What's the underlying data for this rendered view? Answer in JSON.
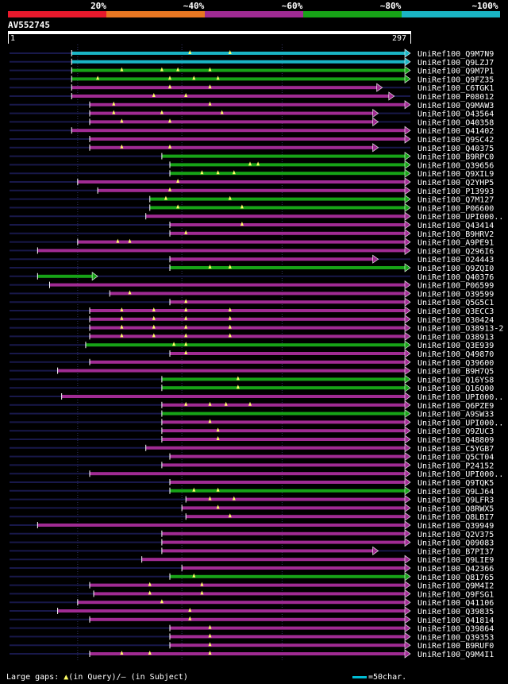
{
  "legend": {
    "segments": [
      {
        "label": "20%",
        "color": "#e8192c"
      },
      {
        "label": "~40%",
        "color": "#e87722"
      },
      {
        "label": "~60%",
        "color": "#a02b93"
      },
      {
        "label": "~80%",
        "color": "#17a317"
      },
      {
        "label": "~100%",
        "color": "#1ab5c5"
      }
    ]
  },
  "query": {
    "name": "AV552745",
    "start": "1",
    "end": "297"
  },
  "hits": [
    {
      "name": "UniRef100_Q9M7N9",
      "color": "cyan",
      "start": 0.155,
      "end": 1.0,
      "gaps": [
        0.45,
        0.55
      ]
    },
    {
      "name": "UniRef100_Q9LZJ7",
      "color": "cyan",
      "start": 0.155,
      "end": 1.0,
      "gaps": []
    },
    {
      "name": "UniRef100_Q9M7P1",
      "color": "green",
      "start": 0.155,
      "end": 1.0,
      "gaps": [
        0.28,
        0.38,
        0.42,
        0.5
      ]
    },
    {
      "name": "UniRef100_Q9FZ35",
      "color": "green",
      "start": 0.155,
      "end": 1.0,
      "gaps": [
        0.22,
        0.4,
        0.46,
        0.52
      ]
    },
    {
      "name": "UniRef100_C6TGK1",
      "color": "magenta",
      "start": 0.155,
      "end": 0.93,
      "gaps": [
        0.4,
        0.5
      ]
    },
    {
      "name": "UniRef100_P08012",
      "color": "magenta",
      "start": 0.155,
      "end": 0.96,
      "gaps": [
        0.36,
        0.44
      ]
    },
    {
      "name": "UniRef100_Q9MAW3",
      "color": "magenta",
      "start": 0.2,
      "end": 1.0,
      "gaps": [
        0.26,
        0.5
      ]
    },
    {
      "name": "UniRef100_O43564",
      "color": "magenta",
      "start": 0.2,
      "end": 0.92,
      "gaps": [
        0.26,
        0.38,
        0.53
      ]
    },
    {
      "name": "UniRef100_O40358",
      "color": "magenta",
      "start": 0.2,
      "end": 0.92,
      "gaps": [
        0.28,
        0.4
      ]
    },
    {
      "name": "UniRef100_Q41402",
      "color": "magenta",
      "start": 0.155,
      "end": 1.0,
      "gaps": []
    },
    {
      "name": "UniRef100_Q9SC42",
      "color": "magenta",
      "start": 0.2,
      "end": 1.0,
      "gaps": []
    },
    {
      "name": "UniRef100_Q40375",
      "color": "magenta",
      "start": 0.2,
      "end": 0.92,
      "gaps": [
        0.28,
        0.4
      ]
    },
    {
      "name": "UniRef100_B9RPC0",
      "color": "green",
      "start": 0.38,
      "end": 1.0,
      "gaps": []
    },
    {
      "name": "UniRef100_Q39656",
      "color": "green",
      "start": 0.4,
      "end": 1.0,
      "gaps": [
        0.6,
        0.62
      ]
    },
    {
      "name": "UniRef100_Q9XIL9",
      "color": "green",
      "start": 0.4,
      "end": 1.0,
      "gaps": [
        0.48,
        0.52,
        0.56
      ]
    },
    {
      "name": "UniRef100_Q2YHP5",
      "color": "magenta",
      "start": 0.17,
      "end": 1.0,
      "gaps": [
        0.42
      ]
    },
    {
      "name": "UniRef100_P13993",
      "color": "magenta",
      "start": 0.22,
      "end": 1.0,
      "gaps": [
        0.4
      ]
    },
    {
      "name": "UniRef100_Q7M127",
      "color": "green",
      "start": 0.35,
      "end": 1.0,
      "gaps": [
        0.39,
        0.55
      ]
    },
    {
      "name": "UniRef100_P06600",
      "color": "green",
      "start": 0.35,
      "end": 1.0,
      "gaps": [
        0.42,
        0.58
      ]
    },
    {
      "name": "UniRef100_UPI000..",
      "color": "magenta",
      "start": 0.34,
      "end": 1.0,
      "gaps": []
    },
    {
      "name": "UniRef100_Q43414",
      "color": "magenta",
      "start": 0.4,
      "end": 1.0,
      "gaps": [
        0.58
      ]
    },
    {
      "name": "UniRef100_B9HRV2",
      "color": "magenta",
      "start": 0.4,
      "end": 1.0,
      "gaps": [
        0.44
      ]
    },
    {
      "name": "UniRef100_A9PE91",
      "color": "magenta",
      "start": 0.17,
      "end": 1.0,
      "gaps": [
        0.27,
        0.3
      ]
    },
    {
      "name": "UniRef100_Q296I6",
      "color": "magenta",
      "start": 0.07,
      "end": 1.0,
      "gaps": []
    },
    {
      "name": "UniRef100_O24443",
      "color": "magenta",
      "start": 0.4,
      "end": 0.92,
      "gaps": []
    },
    {
      "name": "UniRef100_Q9ZQI0",
      "color": "green",
      "start": 0.4,
      "end": 1.0,
      "gaps": [
        0.5,
        0.55
      ]
    },
    {
      "name": "UniRef100_Q40376",
      "color": "green",
      "start": 0.07,
      "end": 0.22,
      "gaps": []
    },
    {
      "name": "UniRef100_P06599",
      "color": "magenta",
      "start": 0.1,
      "end": 1.0,
      "gaps": []
    },
    {
      "name": "UniRef100_O39599",
      "color": "magenta",
      "start": 0.25,
      "end": 1.0,
      "gaps": [
        0.3
      ]
    },
    {
      "name": "UniRef100_Q5G5C1",
      "color": "magenta",
      "start": 0.4,
      "end": 1.0,
      "gaps": [
        0.44
      ]
    },
    {
      "name": "UniRef100_Q3ECC3",
      "color": "magenta",
      "start": 0.2,
      "end": 1.0,
      "gaps": [
        0.28,
        0.36,
        0.44,
        0.55
      ]
    },
    {
      "name": "UniRef100_O30424",
      "color": "magenta",
      "start": 0.2,
      "end": 1.0,
      "gaps": [
        0.28,
        0.36,
        0.44,
        0.55
      ]
    },
    {
      "name": "UniRef100_O38913-2",
      "color": "magenta",
      "start": 0.2,
      "end": 1.0,
      "gaps": [
        0.28,
        0.36,
        0.44,
        0.55
      ]
    },
    {
      "name": "UniRef100_O38913",
      "color": "magenta",
      "start": 0.2,
      "end": 1.0,
      "gaps": [
        0.28,
        0.36,
        0.44,
        0.55
      ]
    },
    {
      "name": "UniRef100_Q3E939",
      "color": "green",
      "start": 0.19,
      "end": 1.0,
      "gaps": [
        0.41,
        0.44
      ]
    },
    {
      "name": "UniRef100_Q49870",
      "color": "magenta",
      "start": 0.4,
      "end": 1.0,
      "gaps": [
        0.44
      ]
    },
    {
      "name": "UniRef100_Q39600",
      "color": "magenta",
      "start": 0.2,
      "end": 1.0,
      "gaps": []
    },
    {
      "name": "UniRef100_B9H7Q5",
      "color": "magenta",
      "start": 0.12,
      "end": 1.0,
      "gaps": []
    },
    {
      "name": "UniRef100_Q16YS8",
      "color": "green",
      "start": 0.38,
      "end": 1.0,
      "gaps": [
        0.57
      ]
    },
    {
      "name": "UniRef100_Q16Q00",
      "color": "green",
      "start": 0.38,
      "end": 1.0,
      "gaps": [
        0.57
      ]
    },
    {
      "name": "UniRef100_UPI000..",
      "color": "magenta",
      "start": 0.13,
      "end": 1.0,
      "gaps": []
    },
    {
      "name": "UniRef100_Q6PZE9",
      "color": "magenta",
      "start": 0.38,
      "end": 1.0,
      "gaps": [
        0.44,
        0.5,
        0.54,
        0.6
      ]
    },
    {
      "name": "UniRef100_A9SW33",
      "color": "green",
      "start": 0.38,
      "end": 1.0,
      "gaps": []
    },
    {
      "name": "UniRef100_UPI000..",
      "color": "magenta",
      "start": 0.38,
      "end": 1.0,
      "gaps": [
        0.5
      ]
    },
    {
      "name": "UniRef100_Q9ZUC3",
      "color": "magenta",
      "start": 0.38,
      "end": 1.0,
      "gaps": [
        0.52
      ]
    },
    {
      "name": "UniRef100_Q48809",
      "color": "magenta",
      "start": 0.38,
      "end": 1.0,
      "gaps": [
        0.52
      ]
    },
    {
      "name": "UniRef100_C5YGB7",
      "color": "magenta",
      "start": 0.34,
      "end": 1.0,
      "gaps": []
    },
    {
      "name": "UniRef100_Q5CT04",
      "color": "magenta",
      "start": 0.4,
      "end": 1.0,
      "gaps": []
    },
    {
      "name": "UniRef100_P24152",
      "color": "magenta",
      "start": 0.38,
      "end": 1.0,
      "gaps": []
    },
    {
      "name": "UniRef100_UPI000..",
      "color": "magenta",
      "start": 0.2,
      "end": 1.0,
      "gaps": []
    },
    {
      "name": "UniRef100_Q9TQK5",
      "color": "magenta",
      "start": 0.4,
      "end": 1.0,
      "gaps": []
    },
    {
      "name": "UniRef100_Q9LJ64",
      "color": "green",
      "start": 0.4,
      "end": 1.0,
      "gaps": [
        0.46,
        0.52
      ]
    },
    {
      "name": "UniRef100_Q9LFR3",
      "color": "magenta",
      "start": 0.44,
      "end": 1.0,
      "gaps": [
        0.5,
        0.56
      ]
    },
    {
      "name": "UniRef100_Q8RWX5",
      "color": "magenta",
      "start": 0.43,
      "end": 1.0,
      "gaps": [
        0.52
      ]
    },
    {
      "name": "UniRef100_Q8LBI7",
      "color": "magenta",
      "start": 0.44,
      "end": 1.0,
      "gaps": [
        0.55
      ]
    },
    {
      "name": "UniRef100_Q39949",
      "color": "magenta",
      "start": 0.07,
      "end": 1.0,
      "gaps": []
    },
    {
      "name": "UniRef100_Q2V375",
      "color": "magenta",
      "start": 0.38,
      "end": 1.0,
      "gaps": []
    },
    {
      "name": "UniRef100_Q09083",
      "color": "magenta",
      "start": 0.38,
      "end": 1.0,
      "gaps": []
    },
    {
      "name": "UniRef100_B7PI37",
      "color": "magenta",
      "start": 0.38,
      "end": 0.92,
      "gaps": []
    },
    {
      "name": "UniRef100_Q9LIE9",
      "color": "magenta",
      "start": 0.33,
      "end": 1.0,
      "gaps": []
    },
    {
      "name": "UniRef100_Q42366",
      "color": "magenta",
      "start": 0.43,
      "end": 1.0,
      "gaps": []
    },
    {
      "name": "UniRef100_Q81765",
      "color": "green",
      "start": 0.4,
      "end": 1.0,
      "gaps": [
        0.46
      ]
    },
    {
      "name": "UniRef100_Q9M4I2",
      "color": "magenta",
      "start": 0.2,
      "end": 1.0,
      "gaps": [
        0.35,
        0.48
      ]
    },
    {
      "name": "UniRef100_Q9FSG1",
      "color": "magenta",
      "start": 0.21,
      "end": 1.0,
      "gaps": [
        0.35,
        0.48
      ]
    },
    {
      "name": "UniRef100_Q41106",
      "color": "magenta",
      "start": 0.17,
      "end": 1.0,
      "gaps": [
        0.38
      ]
    },
    {
      "name": "UniRef100_Q39835",
      "color": "magenta",
      "start": 0.12,
      "end": 1.0,
      "gaps": [
        0.45
      ]
    },
    {
      "name": "UniRef100_Q41814",
      "color": "magenta",
      "start": 0.2,
      "end": 1.0,
      "gaps": [
        0.45
      ]
    },
    {
      "name": "UniRef100_Q39864",
      "color": "magenta",
      "start": 0.4,
      "end": 1.0,
      "gaps": [
        0.5
      ]
    },
    {
      "name": "UniRef100_Q39353",
      "color": "magenta",
      "start": 0.4,
      "end": 1.0,
      "gaps": [
        0.5
      ]
    },
    {
      "name": "UniRef100_B9RUF0",
      "color": "magenta",
      "start": 0.4,
      "end": 1.0,
      "gaps": [
        0.5
      ]
    },
    {
      "name": "UniRef100_Q9M4I1",
      "color": "magenta",
      "start": 0.2,
      "end": 1.0,
      "gaps": [
        0.28,
        0.35,
        0.5
      ]
    }
  ],
  "colors": {
    "cyan": "#1ab5c5",
    "green": "#17a317",
    "magenta": "#a02b93",
    "unaligned": "#18184a",
    "grid": "#333366"
  },
  "footer": {
    "gaps_label": "Large gaps:",
    "in_query": "(in Query)/",
    "in_subject": "(in Subject)",
    "scale_label": "=50char."
  }
}
